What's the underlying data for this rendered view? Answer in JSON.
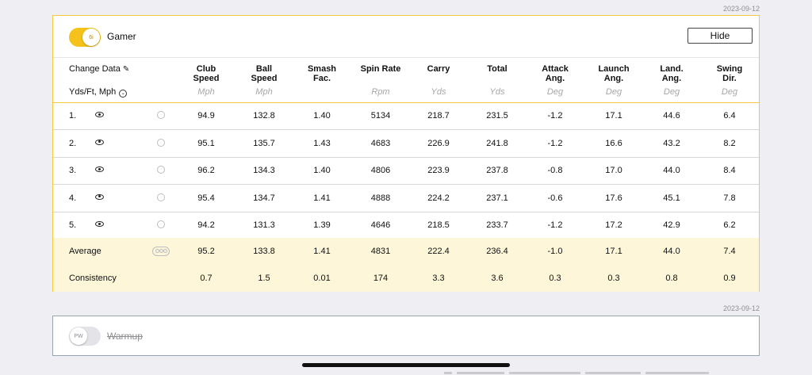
{
  "session": {
    "date_top": "2023-09-12",
    "date_bottom": "2023-09-12"
  },
  "main_card": {
    "club_badge": "6i",
    "club_name": "Gamer",
    "toggle_on": true,
    "hide_label": "Hide",
    "change_data_label": "Change Data",
    "units_label": "Yds/Ft, Mph"
  },
  "columns": [
    {
      "label_line1": "Club",
      "label_line2": "Speed",
      "unit": "Mph"
    },
    {
      "label_line1": "Ball",
      "label_line2": "Speed",
      "unit": "Mph"
    },
    {
      "label_line1": "Smash",
      "label_line2": "Fac.",
      "unit": ""
    },
    {
      "label_line1": "Spin Rate",
      "label_line2": "",
      "unit": "Rpm"
    },
    {
      "label_line1": "Carry",
      "label_line2": "",
      "unit": "Yds"
    },
    {
      "label_line1": "Total",
      "label_line2": "",
      "unit": "Yds"
    },
    {
      "label_line1": "Attack",
      "label_line2": "Ang.",
      "unit": "Deg"
    },
    {
      "label_line1": "Launch",
      "label_line2": "Ang.",
      "unit": "Deg"
    },
    {
      "label_line1": "Land.",
      "label_line2": "Ang.",
      "unit": "Deg"
    },
    {
      "label_line1": "Swing",
      "label_line2": "Dir.",
      "unit": "Deg"
    }
  ],
  "shots": [
    {
      "label": "1.",
      "values": [
        "94.9",
        "132.8",
        "1.40",
        "5134",
        "218.7",
        "231.5",
        "-1.2",
        "17.1",
        "44.6",
        "6.4"
      ]
    },
    {
      "label": "2.",
      "values": [
        "95.1",
        "135.7",
        "1.43",
        "4683",
        "226.9",
        "241.8",
        "-1.2",
        "16.6",
        "43.2",
        "8.2"
      ]
    },
    {
      "label": "3.",
      "values": [
        "96.2",
        "134.3",
        "1.40",
        "4806",
        "223.9",
        "237.8",
        "-0.8",
        "17.0",
        "44.0",
        "8.4"
      ]
    },
    {
      "label": "4.",
      "values": [
        "95.4",
        "134.7",
        "1.41",
        "4888",
        "224.2",
        "237.1",
        "-0.6",
        "17.6",
        "45.1",
        "7.8"
      ]
    },
    {
      "label": "5.",
      "values": [
        "94.2",
        "131.3",
        "1.39",
        "4646",
        "218.5",
        "233.7",
        "-1.2",
        "17.2",
        "42.9",
        "6.2"
      ]
    }
  ],
  "average": {
    "label": "Average",
    "values": [
      "95.2",
      "133.8",
      "1.41",
      "4831",
      "222.4",
      "236.4",
      "-1.0",
      "17.1",
      "44.0",
      "7.4"
    ]
  },
  "consistency": {
    "label": "Consistency",
    "values": [
      "0.7",
      "1.5",
      "0.01",
      "174",
      "3.3",
      "3.6",
      "0.3",
      "0.3",
      "0.8",
      "0.9"
    ]
  },
  "warmup_card": {
    "club_badge": "PW",
    "club_name": "Warmup",
    "toggle_on": false
  },
  "colors": {
    "accent": "#f4c21a",
    "highlight_row": "#fdf6d8",
    "border_accent": "#f2c940"
  }
}
